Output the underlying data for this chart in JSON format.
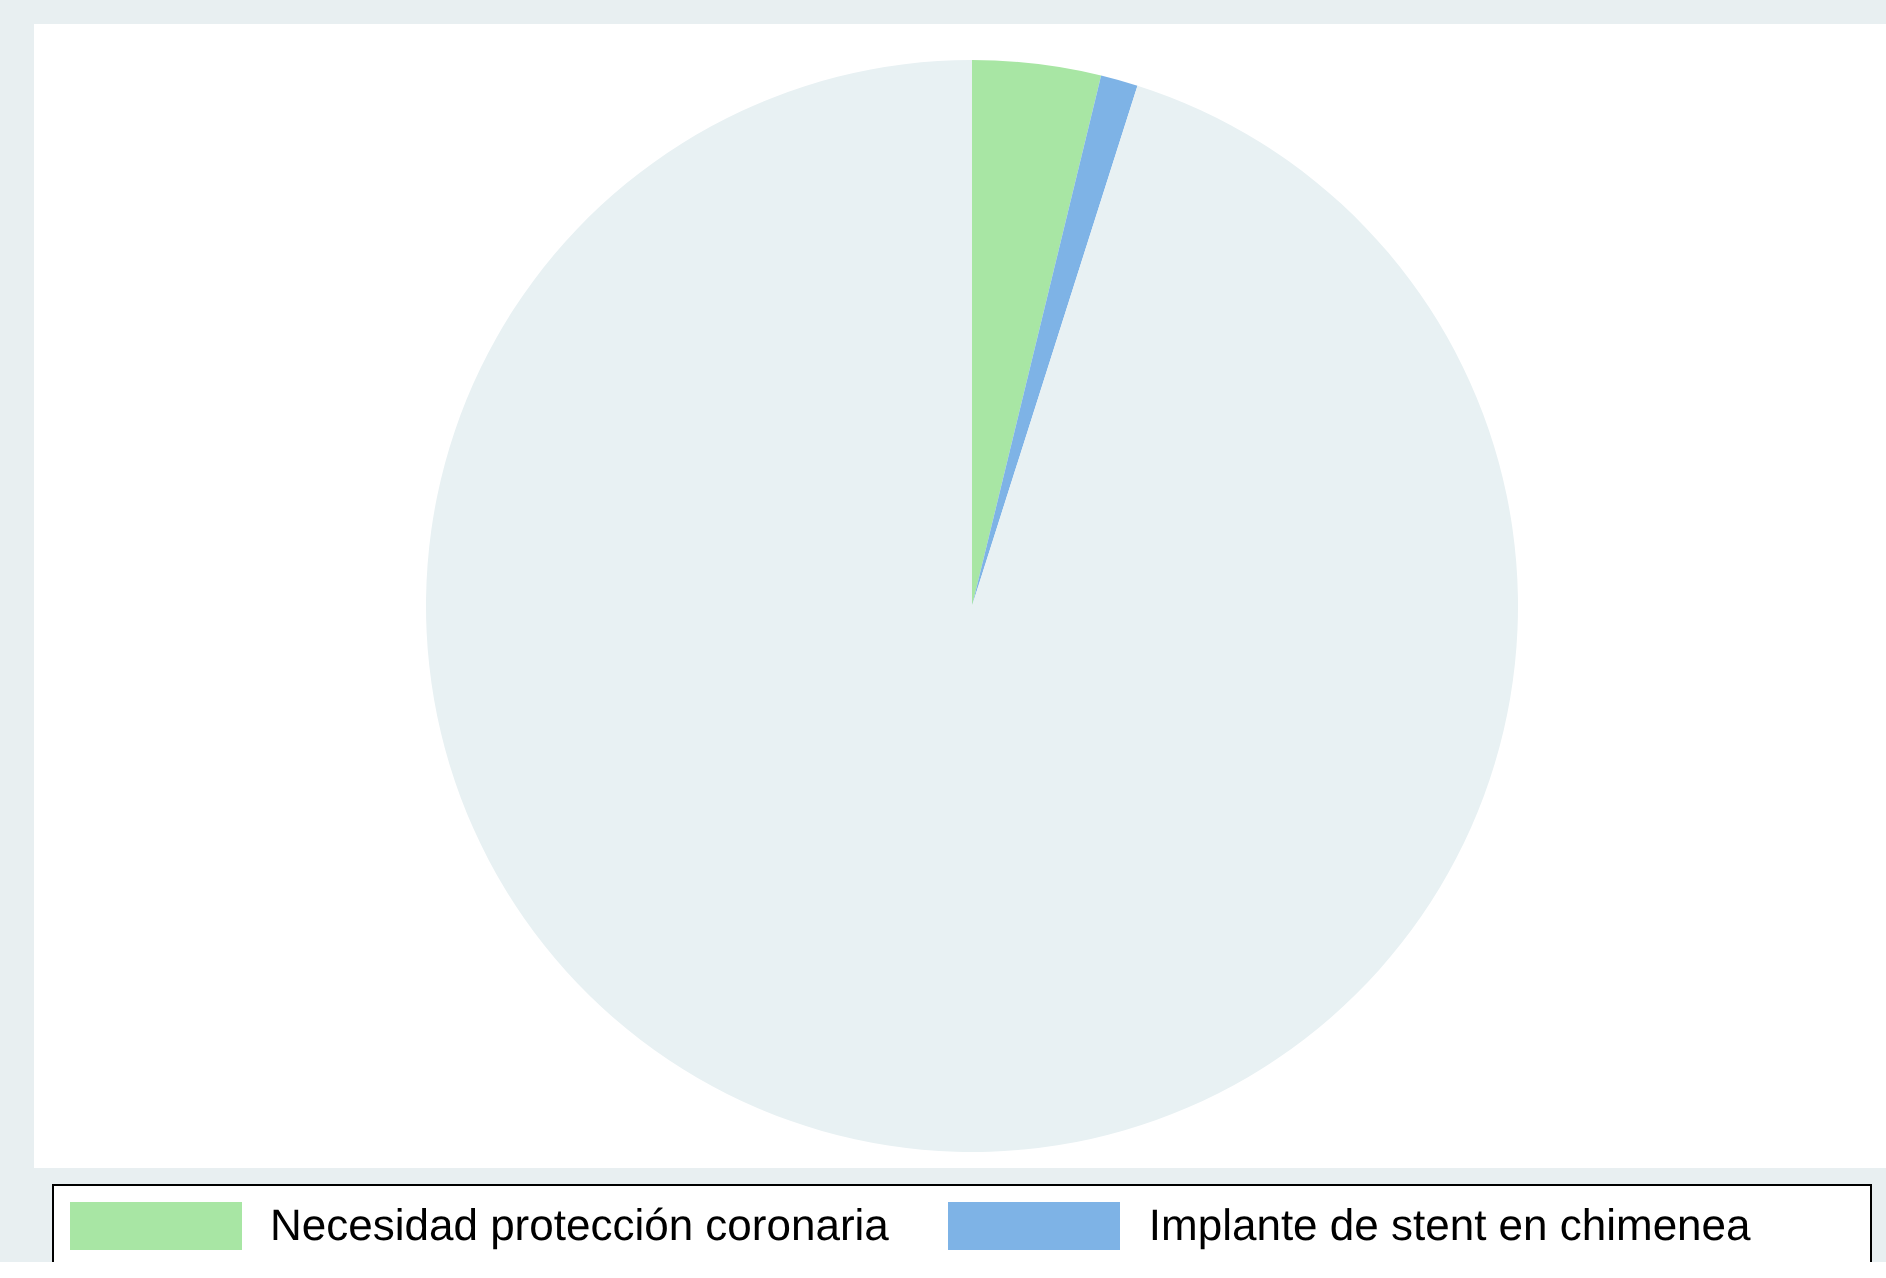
{
  "chart_data": {
    "type": "pie",
    "categories": [
      "Necesidad protección coronaria",
      "Implante de stent en chimenea",
      null
    ],
    "values": [
      3.8,
      1.1,
      95.1
    ],
    "colors": [
      "#a8e6a4",
      "#7eb3e6",
      "#e8f1f3"
    ],
    "legend": "bottom"
  }
}
